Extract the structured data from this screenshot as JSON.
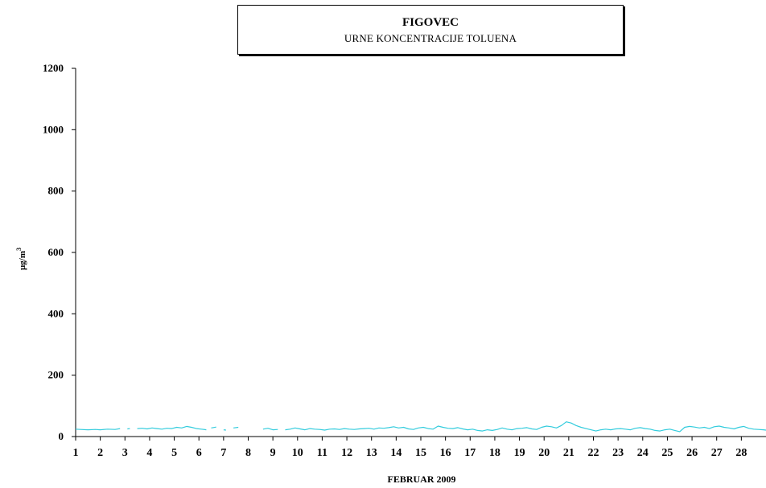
{
  "chart_data": {
    "type": "line",
    "title": "FIGOVEC",
    "subtitle": "URNE KONCENTRACIJE TOLUENA",
    "xlabel": "FEBRUAR 2009",
    "ylabel": "µg/m3",
    "ylabel_main": "µg/m",
    "ylabel_sup": "3",
    "ylim": [
      0,
      1200
    ],
    "yticks": [
      "0",
      "200",
      "400",
      "600",
      "800",
      "1000",
      "1200"
    ],
    "xticks": [
      "1",
      "2",
      "3",
      "4",
      "5",
      "6",
      "7",
      "8",
      "9",
      "10",
      "11",
      "12",
      "13",
      "14",
      "15",
      "16",
      "17",
      "18",
      "19",
      "20",
      "21",
      "22",
      "23",
      "24",
      "25",
      "26",
      "27",
      "28"
    ],
    "xlim": [
      1,
      29
    ],
    "grid": false,
    "line_color": "#33ccdd",
    "series": [
      {
        "points": [
          [
            1.0,
            24
          ],
          [
            1.2,
            23
          ],
          [
            1.5,
            22
          ],
          [
            1.8,
            23
          ],
          [
            2.0,
            22
          ],
          [
            2.3,
            24
          ],
          [
            2.6,
            23
          ],
          [
            2.8,
            26
          ],
          [
            3.0,
            null
          ],
          [
            3.1,
            25
          ],
          [
            3.2,
            26
          ],
          [
            3.3,
            null
          ],
          [
            3.5,
            26
          ],
          [
            3.7,
            27
          ],
          [
            3.9,
            25
          ],
          [
            4.1,
            28
          ],
          [
            4.3,
            26
          ],
          [
            4.5,
            24
          ],
          [
            4.7,
            27
          ],
          [
            4.9,
            26
          ],
          [
            5.1,
            30
          ],
          [
            5.3,
            28
          ],
          [
            5.5,
            33
          ],
          [
            5.7,
            30
          ],
          [
            5.9,
            26
          ],
          [
            6.1,
            24
          ],
          [
            6.3,
            22
          ],
          [
            6.4,
            null
          ],
          [
            6.5,
            28
          ],
          [
            6.7,
            31
          ],
          [
            6.8,
            null
          ],
          [
            7.0,
            22
          ],
          [
            7.1,
            21
          ],
          [
            7.15,
            null
          ],
          [
            7.4,
            28
          ],
          [
            7.6,
            30
          ],
          [
            7.7,
            null
          ],
          [
            8.6,
            24
          ],
          [
            8.8,
            27
          ],
          [
            9.0,
            22
          ],
          [
            9.2,
            23
          ],
          [
            9.3,
            null
          ],
          [
            9.5,
            22
          ],
          [
            9.7,
            24
          ],
          [
            9.9,
            28
          ],
          [
            10.1,
            25
          ],
          [
            10.3,
            22
          ],
          [
            10.5,
            26
          ],
          [
            10.7,
            24
          ],
          [
            10.9,
            23
          ],
          [
            11.1,
            21
          ],
          [
            11.3,
            24
          ],
          [
            11.5,
            25
          ],
          [
            11.7,
            23
          ],
          [
            11.9,
            26
          ],
          [
            12.1,
            24
          ],
          [
            12.3,
            23
          ],
          [
            12.5,
            25
          ],
          [
            12.7,
            26
          ],
          [
            12.9,
            27
          ],
          [
            13.1,
            24
          ],
          [
            13.3,
            28
          ],
          [
            13.5,
            27
          ],
          [
            13.7,
            29
          ],
          [
            13.9,
            32
          ],
          [
            14.1,
            28
          ],
          [
            14.3,
            30
          ],
          [
            14.5,
            25
          ],
          [
            14.7,
            23
          ],
          [
            14.9,
            28
          ],
          [
            15.1,
            30
          ],
          [
            15.3,
            26
          ],
          [
            15.5,
            24
          ],
          [
            15.7,
            34
          ],
          [
            15.9,
            30
          ],
          [
            16.1,
            27
          ],
          [
            16.3,
            26
          ],
          [
            16.5,
            29
          ],
          [
            16.7,
            25
          ],
          [
            16.9,
            22
          ],
          [
            17.1,
            24
          ],
          [
            17.3,
            20
          ],
          [
            17.5,
            18
          ],
          [
            17.7,
            22
          ],
          [
            17.9,
            20
          ],
          [
            18.1,
            23
          ],
          [
            18.3,
            28
          ],
          [
            18.5,
            24
          ],
          [
            18.7,
            22
          ],
          [
            18.9,
            26
          ],
          [
            19.1,
            27
          ],
          [
            19.3,
            29
          ],
          [
            19.5,
            25
          ],
          [
            19.7,
            23
          ],
          [
            19.9,
            30
          ],
          [
            20.1,
            34
          ],
          [
            20.3,
            32
          ],
          [
            20.5,
            28
          ],
          [
            20.7,
            36
          ],
          [
            20.9,
            48
          ],
          [
            21.1,
            44
          ],
          [
            21.3,
            36
          ],
          [
            21.5,
            30
          ],
          [
            21.7,
            26
          ],
          [
            21.9,
            22
          ],
          [
            22.1,
            18
          ],
          [
            22.3,
            22
          ],
          [
            22.5,
            24
          ],
          [
            22.7,
            22
          ],
          [
            22.9,
            25
          ],
          [
            23.1,
            26
          ],
          [
            23.3,
            24
          ],
          [
            23.5,
            22
          ],
          [
            23.7,
            27
          ],
          [
            23.9,
            29
          ],
          [
            24.1,
            26
          ],
          [
            24.3,
            24
          ],
          [
            24.5,
            20
          ],
          [
            24.7,
            18
          ],
          [
            24.9,
            22
          ],
          [
            25.1,
            24
          ],
          [
            25.3,
            20
          ],
          [
            25.5,
            16
          ],
          [
            25.7,
            30
          ],
          [
            25.9,
            33
          ],
          [
            26.1,
            31
          ],
          [
            26.3,
            28
          ],
          [
            26.5,
            30
          ],
          [
            26.7,
            26
          ],
          [
            26.9,
            32
          ],
          [
            27.1,
            34
          ],
          [
            27.3,
            30
          ],
          [
            27.5,
            28
          ],
          [
            27.7,
            25
          ],
          [
            27.9,
            30
          ],
          [
            28.1,
            33
          ],
          [
            28.3,
            27
          ],
          [
            28.5,
            24
          ],
          [
            28.7,
            23
          ],
          [
            28.9,
            22
          ],
          [
            29.0,
            21
          ]
        ]
      }
    ]
  }
}
